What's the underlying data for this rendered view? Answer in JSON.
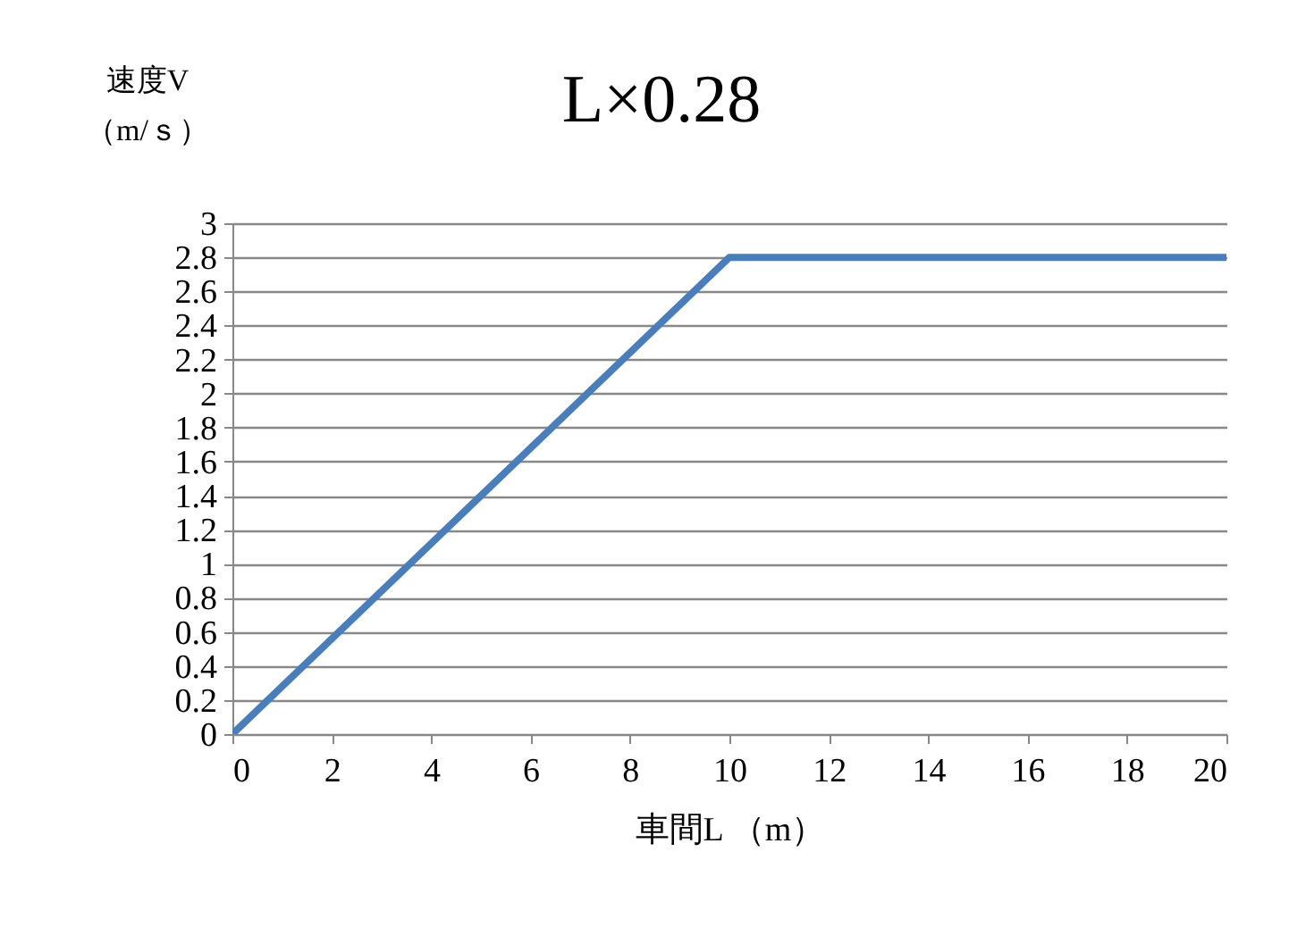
{
  "chart_data": {
    "type": "line",
    "title": "L×0.28",
    "xlabel": "車間L （m）",
    "ylabel": "速度V\n（m/ｓ）",
    "x": [
      0,
      10,
      20
    ],
    "series": [
      {
        "color": "#4a7ebb",
        "values": [
          0,
          2.8,
          2.8
        ]
      }
    ],
    "xlim": [
      0,
      20
    ],
    "xticks": [
      0,
      2,
      4,
      6,
      8,
      10,
      12,
      14,
      16,
      18,
      20
    ],
    "ylim": [
      0,
      3
    ],
    "yticks": [
      0,
      0.2,
      0.4,
      0.6,
      0.8,
      1,
      1.2,
      1.4,
      1.6,
      1.8,
      2,
      2.2,
      2.4,
      2.6,
      2.8,
      3
    ],
    "grid": "y",
    "marker": "none",
    "line_style": "solid"
  }
}
